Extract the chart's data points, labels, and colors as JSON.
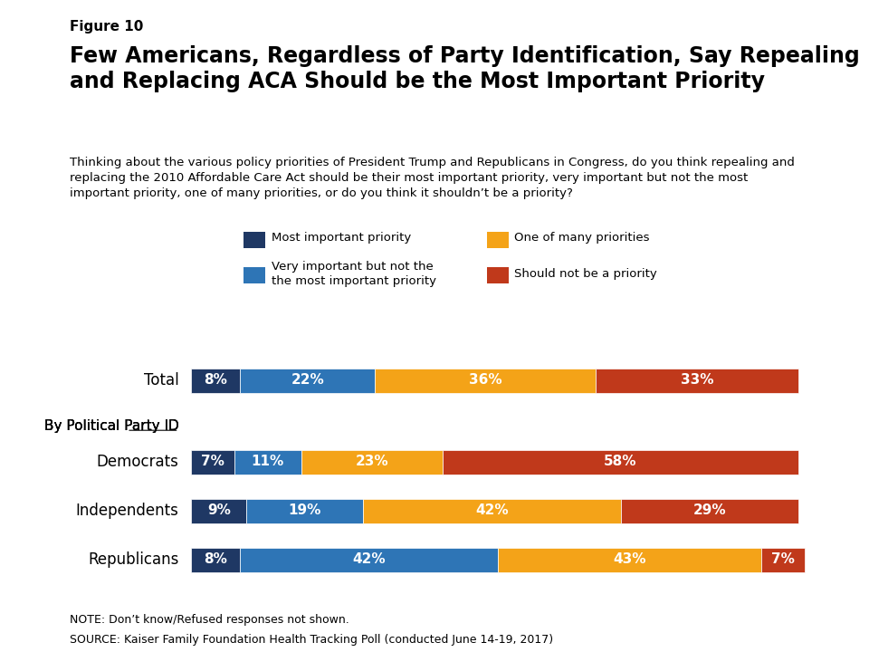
{
  "figure_label": "Figure 10",
  "title": "Few Americans, Regardless of Party Identification, Say Repealing\nand Replacing ACA Should be the Most Important Priority",
  "subtitle": "Thinking about the various policy priorities of President Trump and Republicans in Congress, do you think repealing and\nreplacing the 2010 Affordable Care Act should be their most important priority, very important but not the most\nimportant priority, one of many priorities, or do you think it shouldn’t be a priority?",
  "categories": [
    "Total",
    "Democrats",
    "Independents",
    "Republicans"
  ],
  "values": {
    "most_important": [
      8,
      7,
      9,
      8
    ],
    "very_important": [
      22,
      11,
      19,
      42
    ],
    "one_of_many": [
      36,
      23,
      42,
      43
    ],
    "should_not": [
      33,
      58,
      29,
      7
    ]
  },
  "colors": {
    "most_important": "#1F3864",
    "very_important": "#2E75B6",
    "one_of_many": "#F4A318",
    "should_not": "#C0391B"
  },
  "legend_labels": {
    "most_important": "Most important priority",
    "very_important": "Very important but not the\nthe most important priority",
    "one_of_many": "One of many priorities",
    "should_not": "Should not be a priority"
  },
  "note": "NOTE: Don’t know/Refused responses not shown.",
  "source": "SOURCE: Kaiser Family Foundation Health Tracking Poll (conducted June 14-19, 2017)",
  "by_party_label": "By Political Party ID",
  "bar_height": 0.45,
  "background_color": "#FFFFFF"
}
